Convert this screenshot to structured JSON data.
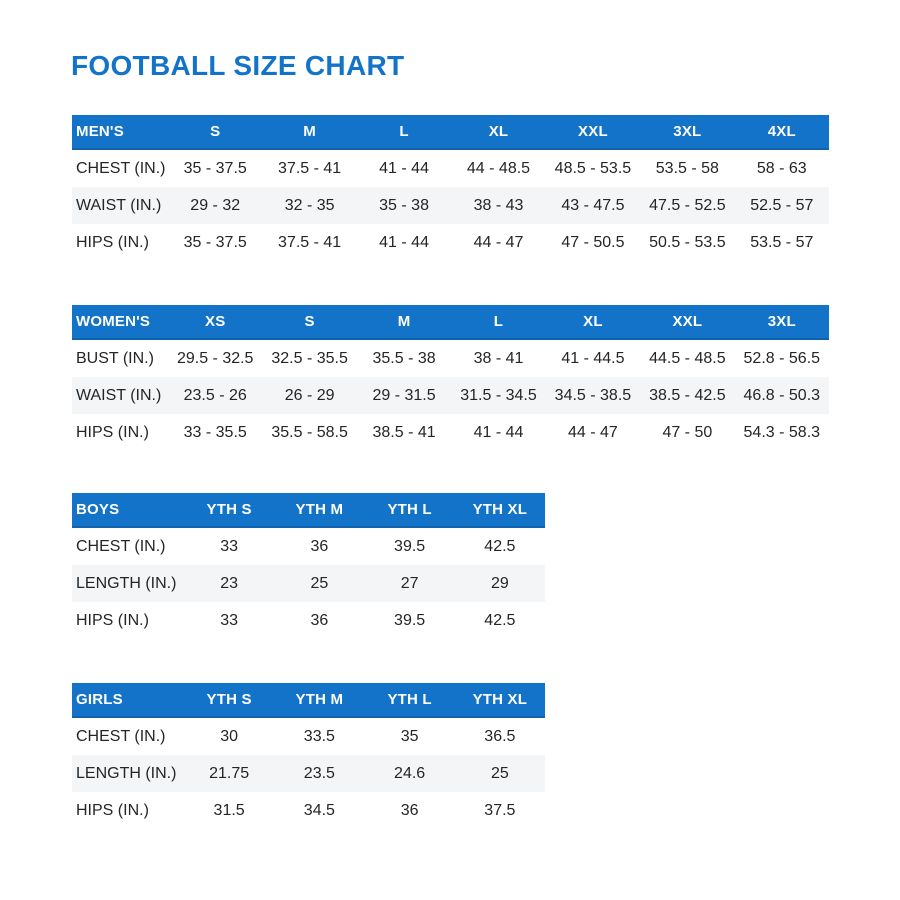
{
  "page": {
    "title": "FOOTBALL SIZE CHART"
  },
  "colors": {
    "accent": "#1373C8",
    "accent_dark": "#0F62AB",
    "stripe": "#F4F5F6",
    "text": "#232528",
    "header_text": "#FFFFFF"
  },
  "tables": [
    {
      "name": "mens",
      "header": [
        "MEN'S",
        "S",
        "M",
        "L",
        "XL",
        "XXL",
        "3XL",
        "4XL"
      ],
      "rows": [
        [
          "CHEST (IN.)",
          "35 - 37.5",
          "37.5 - 41",
          "41 - 44",
          "44 - 48.5",
          "48.5 - 53.5",
          "53.5 - 58",
          "58 - 63"
        ],
        [
          "WAIST (IN.)",
          "29 - 32",
          "32 - 35",
          "35 - 38",
          "38 - 43",
          "43 - 47.5",
          "47.5 - 52.5",
          "52.5 - 57"
        ],
        [
          "HIPS (IN.)",
          "35 - 37.5",
          "37.5 - 41",
          "41 - 44",
          "44 - 47",
          "47 - 50.5",
          "50.5 - 53.5",
          "53.5 - 57"
        ]
      ]
    },
    {
      "name": "womens",
      "header": [
        "WOMEN'S",
        "XS",
        "S",
        "M",
        "L",
        "XL",
        "XXL",
        "3XL"
      ],
      "rows": [
        [
          "BUST (IN.)",
          "29.5 - 32.5",
          "32.5 - 35.5",
          "35.5 - 38",
          "38 - 41",
          "41 - 44.5",
          "44.5 - 48.5",
          "52.8 - 56.5"
        ],
        [
          "WAIST (IN.)",
          "23.5 - 26",
          "26 - 29",
          "29 - 31.5",
          "31.5 - 34.5",
          "34.5 - 38.5",
          "38.5 - 42.5",
          "46.8 - 50.3"
        ],
        [
          "HIPS (IN.)",
          "33 - 35.5",
          "35.5 - 58.5",
          "38.5 - 41",
          "41 - 44",
          "44 - 47",
          "47 - 50",
          "54.3 - 58.3"
        ]
      ]
    },
    {
      "name": "boys",
      "header": [
        "BOYS",
        "YTH S",
        "YTH M",
        "YTH L",
        "YTH XL"
      ],
      "rows": [
        [
          "CHEST (IN.)",
          "33",
          "36",
          "39.5",
          "42.5"
        ],
        [
          "LENGTH (IN.)",
          "23",
          "25",
          "27",
          "29"
        ],
        [
          "HIPS (IN.)",
          "33",
          "36",
          "39.5",
          "42.5"
        ]
      ]
    },
    {
      "name": "girls",
      "header": [
        "GIRLS",
        "YTH S",
        "YTH M",
        "YTH L",
        "YTH XL"
      ],
      "rows": [
        [
          "CHEST (IN.)",
          "30",
          "33.5",
          "35",
          "36.5"
        ],
        [
          "LENGTH (IN.)",
          "21.75",
          "23.5",
          "24.6",
          "25"
        ],
        [
          "HIPS (IN.)",
          "31.5",
          "34.5",
          "36",
          "37.5"
        ]
      ]
    }
  ]
}
